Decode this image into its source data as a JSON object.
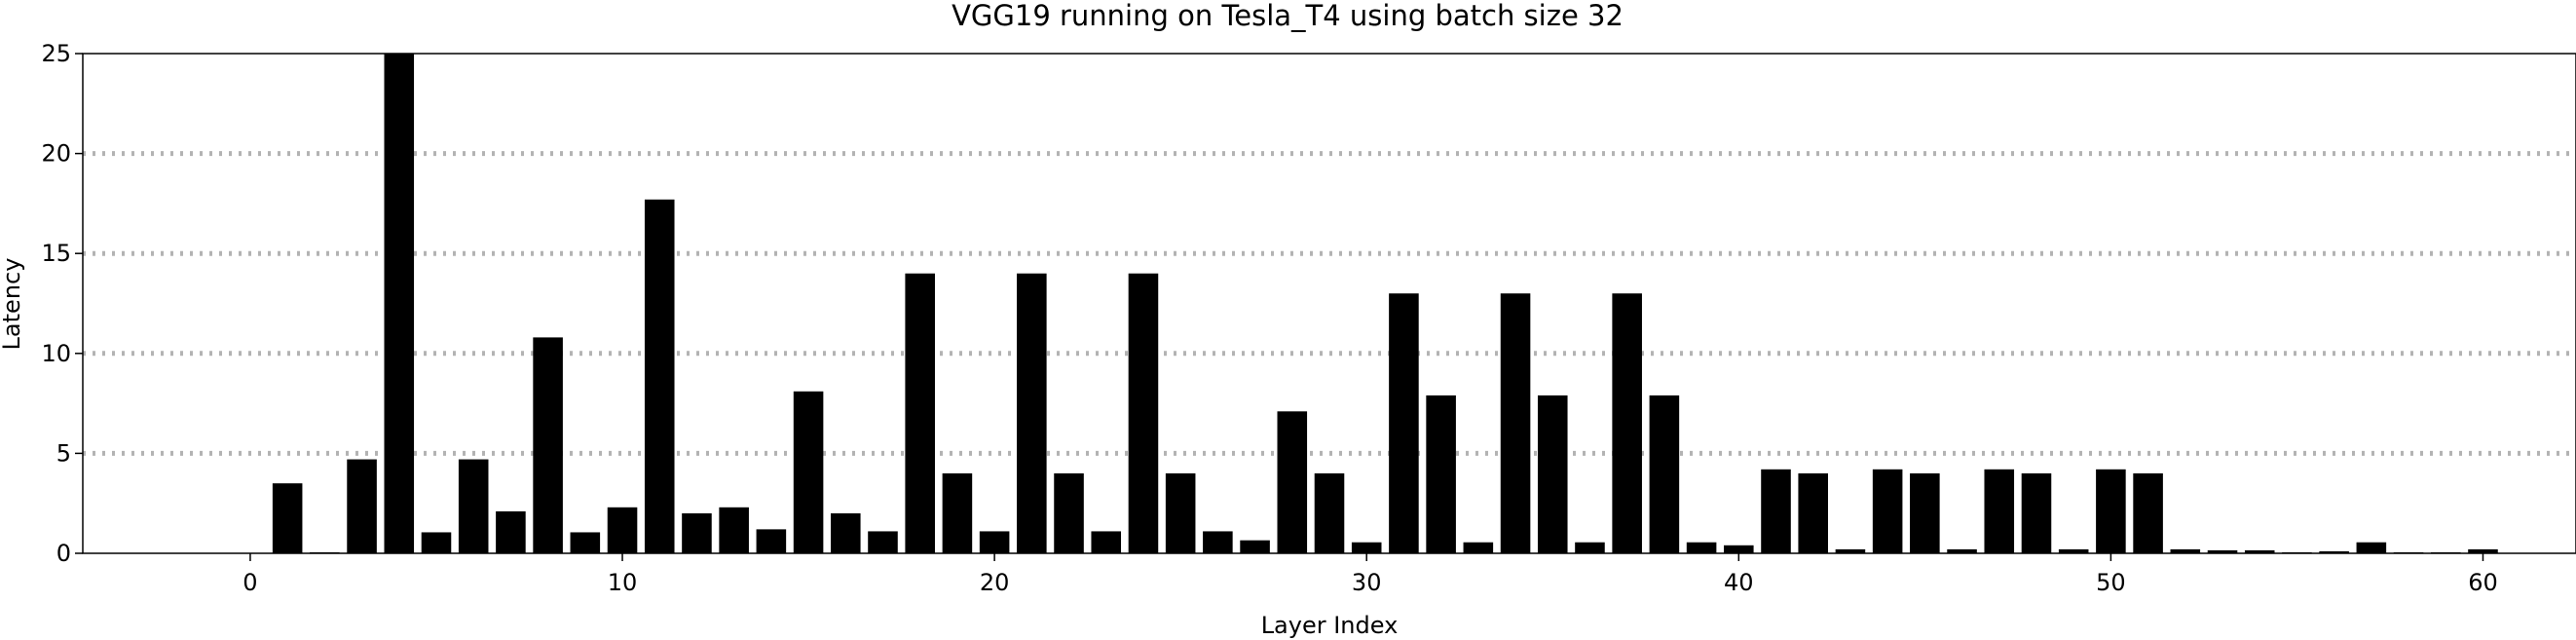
{
  "chart_data": {
    "type": "bar",
    "title": "VGG19 running on Tesla_T4 using batch size 32",
    "xlabel": "Layer Index",
    "ylabel": "Latency",
    "xlim": [
      -4.5,
      62.5
    ],
    "ylim": [
      0,
      25
    ],
    "xticks": [
      0,
      10,
      20,
      30,
      40,
      50,
      60
    ],
    "yticks": [
      0,
      5,
      10,
      15,
      20,
      25
    ],
    "grid": {
      "axis": "y",
      "style": "dotted",
      "lines": [
        5,
        10,
        15,
        20
      ]
    },
    "x": [
      0,
      1,
      2,
      3,
      4,
      5,
      6,
      7,
      8,
      9,
      10,
      11,
      12,
      13,
      14,
      15,
      16,
      17,
      18,
      19,
      20,
      21,
      22,
      23,
      24,
      25,
      26,
      27,
      28,
      29,
      30,
      31,
      32,
      33,
      34,
      35,
      36,
      37,
      38,
      39,
      40,
      41,
      42,
      43,
      44,
      45,
      46,
      47,
      48,
      49,
      50,
      51,
      52,
      53,
      54,
      55,
      56,
      57,
      58,
      59,
      60
    ],
    "values": [
      0.0,
      3.5,
      0.05,
      4.7,
      25.0,
      1.05,
      4.7,
      2.1,
      10.8,
      1.05,
      2.3,
      17.7,
      2.0,
      2.3,
      1.2,
      8.1,
      2.0,
      1.1,
      14.0,
      4.0,
      1.1,
      14.0,
      4.0,
      1.1,
      14.0,
      4.0,
      1.1,
      0.65,
      7.1,
      4.0,
      0.55,
      13.0,
      7.9,
      0.55,
      13.0,
      7.9,
      0.55,
      13.0,
      7.9,
      0.55,
      0.4,
      4.2,
      4.0,
      0.2,
      4.2,
      4.0,
      0.2,
      4.2,
      4.0,
      0.2,
      4.2,
      4.0,
      0.2,
      0.15,
      0.15,
      0.05,
      0.1,
      0.55,
      0.05,
      0.05,
      0.2
    ]
  }
}
